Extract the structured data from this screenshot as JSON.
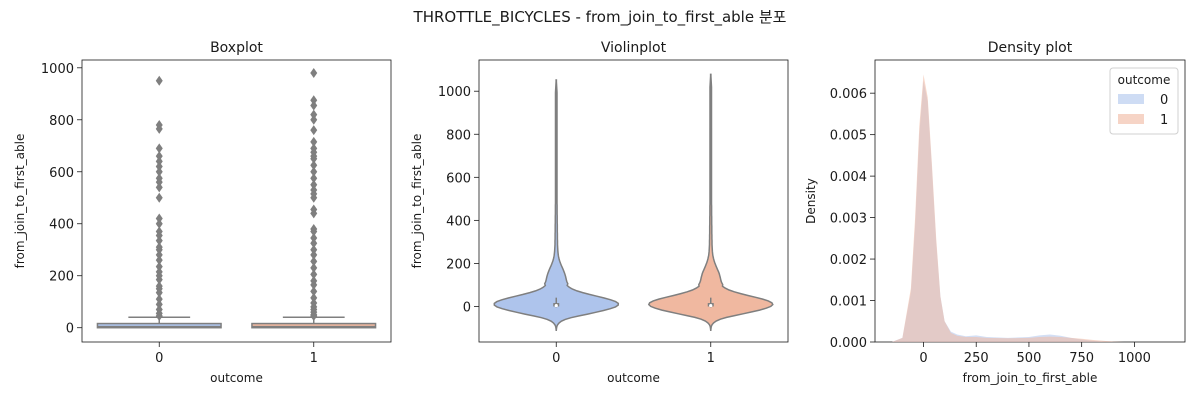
{
  "figure": {
    "suptitle": "THROTTLE_BICYCLES - from_join_to_first_able 분포"
  },
  "chart_data": [
    {
      "type": "box",
      "title": "Boxplot",
      "xlabel": "outcome",
      "ylabel": "from_join_to_first_able",
      "categories": [
        "0",
        "1"
      ],
      "ylim": [
        -55,
        1030
      ],
      "yticks": [
        0,
        200,
        400,
        600,
        800,
        1000
      ],
      "colors": [
        "#aec4ec",
        "#f0b8a0"
      ],
      "boxes": [
        {
          "category": "0",
          "whisker_low": 0,
          "q1": 0,
          "median": 4,
          "q3": 16,
          "whisker_high": 40,
          "outliers": [
            950,
            780,
            765,
            690,
            660,
            640,
            620,
            600,
            575,
            560,
            540,
            500,
            420,
            400,
            370,
            355,
            335,
            310,
            300,
            280,
            260,
            235,
            215,
            200,
            185,
            160,
            150,
            135,
            110,
            90,
            70,
            55,
            45
          ]
        },
        {
          "category": "1",
          "whisker_low": 0,
          "q1": 0,
          "median": 4,
          "q3": 16,
          "whisker_high": 40,
          "outliers": [
            980,
            875,
            855,
            820,
            800,
            760,
            715,
            690,
            675,
            660,
            650,
            625,
            600,
            575,
            550,
            530,
            515,
            500,
            455,
            440,
            380,
            370,
            345,
            325,
            300,
            280,
            255,
            230,
            205,
            180,
            165,
            140,
            115,
            95,
            80,
            70,
            60,
            50,
            45
          ]
        }
      ]
    },
    {
      "type": "violin",
      "title": "Violinplot",
      "xlabel": "outcome",
      "ylabel": "from_join_to_first_able",
      "categories": [
        "0",
        "1"
      ],
      "ylim": [
        -165,
        1145
      ],
      "yticks": [
        0,
        200,
        400,
        600,
        800,
        1000
      ],
      "colors": [
        "#aec4ec",
        "#f0b8a0"
      ],
      "violins": [
        {
          "category": "0",
          "min": -110,
          "max": 1052,
          "median": 4,
          "q1": 0,
          "q3": 16
        },
        {
          "category": "1",
          "min": -110,
          "max": 1078,
          "median": 4,
          "q1": 0,
          "q3": 16
        }
      ]
    },
    {
      "type": "area",
      "title": "Density plot",
      "xlabel": "from_join_to_first_able",
      "ylabel": "Density",
      "xlim": [
        -230,
        1240
      ],
      "ylim": [
        0,
        0.0068
      ],
      "xticks": [
        0,
        250,
        500,
        750,
        1000
      ],
      "yticks": [
        0.0,
        0.001,
        0.002,
        0.003,
        0.004,
        0.005,
        0.006
      ],
      "ytick_labels": [
        "0.000",
        "0.001",
        "0.002",
        "0.003",
        "0.004",
        "0.005",
        "0.006"
      ],
      "legend": {
        "title": "outcome",
        "placement": "top-right"
      },
      "series": [
        {
          "name": "0",
          "color": "#aec4ec",
          "x": [
            -150,
            -100,
            -60,
            -40,
            -20,
            0,
            20,
            40,
            60,
            80,
            100,
            130,
            160,
            200,
            250,
            300,
            400,
            500,
            550,
            600,
            650,
            700,
            750,
            800,
            850,
            900,
            950,
            1000
          ],
          "y": [
            0.0,
            0.0001,
            0.0012,
            0.0028,
            0.005,
            0.0063,
            0.0058,
            0.0042,
            0.0024,
            0.0011,
            0.0005,
            0.00025,
            0.00018,
            0.00014,
            0.00016,
            0.00012,
            0.0001,
            0.00012,
            0.00016,
            0.00018,
            0.00015,
            0.0001,
            6e-05,
            3e-05,
            1e-05,
            0.0,
            0.0,
            0.0
          ]
        },
        {
          "name": "1",
          "color": "#f0b8a0",
          "x": [
            -150,
            -100,
            -60,
            -40,
            -20,
            0,
            20,
            40,
            60,
            80,
            100,
            130,
            160,
            200,
            250,
            300,
            400,
            500,
            550,
            600,
            650,
            700,
            750,
            800,
            850,
            900,
            950,
            1000
          ],
          "y": [
            0.0,
            0.0001,
            0.0013,
            0.003,
            0.0052,
            0.00645,
            0.0059,
            0.0043,
            0.0025,
            0.0011,
            0.0005,
            0.00022,
            0.00015,
            0.00012,
            0.00012,
            0.0001,
            9e-05,
            0.0001,
            0.00012,
            0.00013,
            0.00012,
            0.0001,
            8e-05,
            5e-05,
            3e-05,
            1e-05,
            0.0,
            0.0
          ]
        }
      ]
    }
  ]
}
